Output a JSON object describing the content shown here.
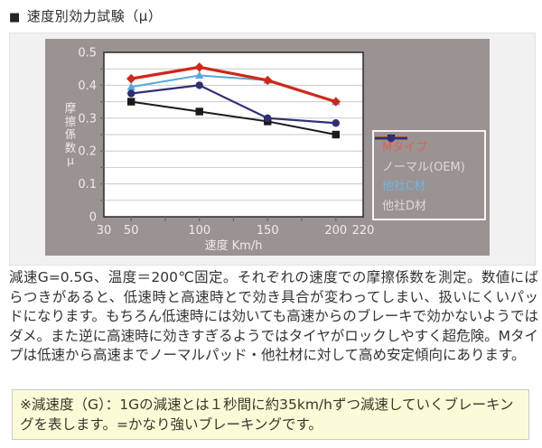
{
  "title": {
    "bullet": "■",
    "text": "速度別効力試験（μ）"
  },
  "chart_data": {
    "type": "line",
    "title": "速度別効力試験（μ）",
    "xlabel": "速度 Km/h",
    "ylabel": "摩擦係数μ",
    "ylabel_chars": [
      "摩",
      "擦",
      "係",
      "数",
      "μ"
    ],
    "x": [
      50,
      100,
      150,
      200
    ],
    "xlim": [
      30,
      220
    ],
    "ylim": [
      0,
      0.5
    ],
    "x_tick_labels": [
      "30",
      "50",
      "100",
      "150",
      "200",
      "220"
    ],
    "x_tick_values": [
      30,
      50,
      100,
      150,
      200,
      220
    ],
    "x_tick_marks": [
      50,
      75,
      100,
      125,
      150,
      175,
      200
    ],
    "y_tick_labels": [
      "0",
      "0.1",
      "0.2",
      "0.3",
      "0.4",
      "0.5"
    ],
    "y_tick_values": [
      0,
      0.1,
      0.2,
      0.3,
      0.4,
      0.5
    ],
    "y_grid_step": 0.05,
    "grid": "horizontal only, light gray, every 0.05",
    "legend_position": "inside right, on gray panel",
    "plot_bg": "#ffffff",
    "panel_bg": "#9a9392",
    "grid_color": "#c9c9c9",
    "axis_color": "#2b2b2b",
    "tick_color": "#6e6866",
    "axis_text_color": "#efebe9",
    "series": [
      {
        "name": "Mタイプ",
        "color": "#cf2819",
        "label_color": "#e2604d",
        "marker": "diamond",
        "line_width": 3.2,
        "values": [
          0.42,
          0.455,
          0.415,
          0.35
        ]
      },
      {
        "name": "ノーマル(OEM)",
        "color": "#1a1a1a",
        "label_color": "#ded8d6",
        "marker": "square",
        "line_width": 2,
        "values": [
          0.35,
          0.32,
          0.29,
          0.25
        ]
      },
      {
        "name": "他社C材",
        "color": "#58a8da",
        "label_color": "#6db6e6",
        "marker": "triangle",
        "line_width": 2,
        "values": [
          0.395,
          0.43,
          0.415,
          0.35
        ]
      },
      {
        "name": "他社D材",
        "color": "#2e3077",
        "label_color": "#ded8d6",
        "marker": "circle",
        "line_width": 2.2,
        "values": [
          0.375,
          0.4,
          0.3,
          0.285
        ]
      }
    ],
    "draw_order": [
      1,
      2,
      3,
      0
    ]
  },
  "description": "減速G=0.5G、温度＝200℃固定。それぞれの速度での摩擦係数を測定。数値にばらつきがあると、低速時と高速時とで効き具合が変わってしまい、扱いにくいパッドになります。もちろん低速時には効いても高速からのブレーキで効かないようではダメ。また逆に高速時に効きすぎるようではタイヤがロックしやすく超危険。Mタイプは低速から高速までノーマルパッド・他社材に対して高め安定傾向にあります。",
  "note": "※減速度（G）：1Gの減速とは１秒間に約35km/hずつ減速していくブレーキングを表します。=かなり強いブレーキングです。"
}
